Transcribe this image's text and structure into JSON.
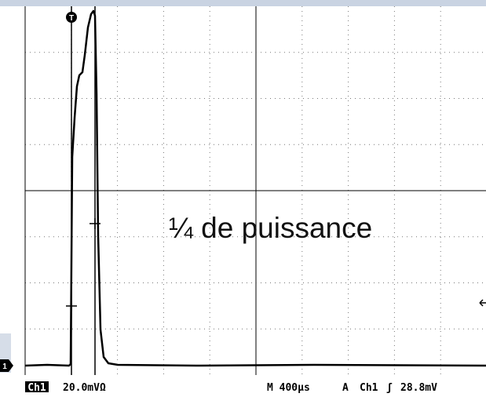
{
  "annotation": "¼ de puissance",
  "markers": {
    "trigger": "T",
    "channel": "1"
  },
  "status_bar": {
    "channel": "Ch1",
    "scale": "20.0mVΩ",
    "timebase": "M 400µs",
    "trigger_mode": "A",
    "trigger_source": "Ch1",
    "trigger_slope": "ʃ",
    "trigger_level": "28.8mV"
  }
}
